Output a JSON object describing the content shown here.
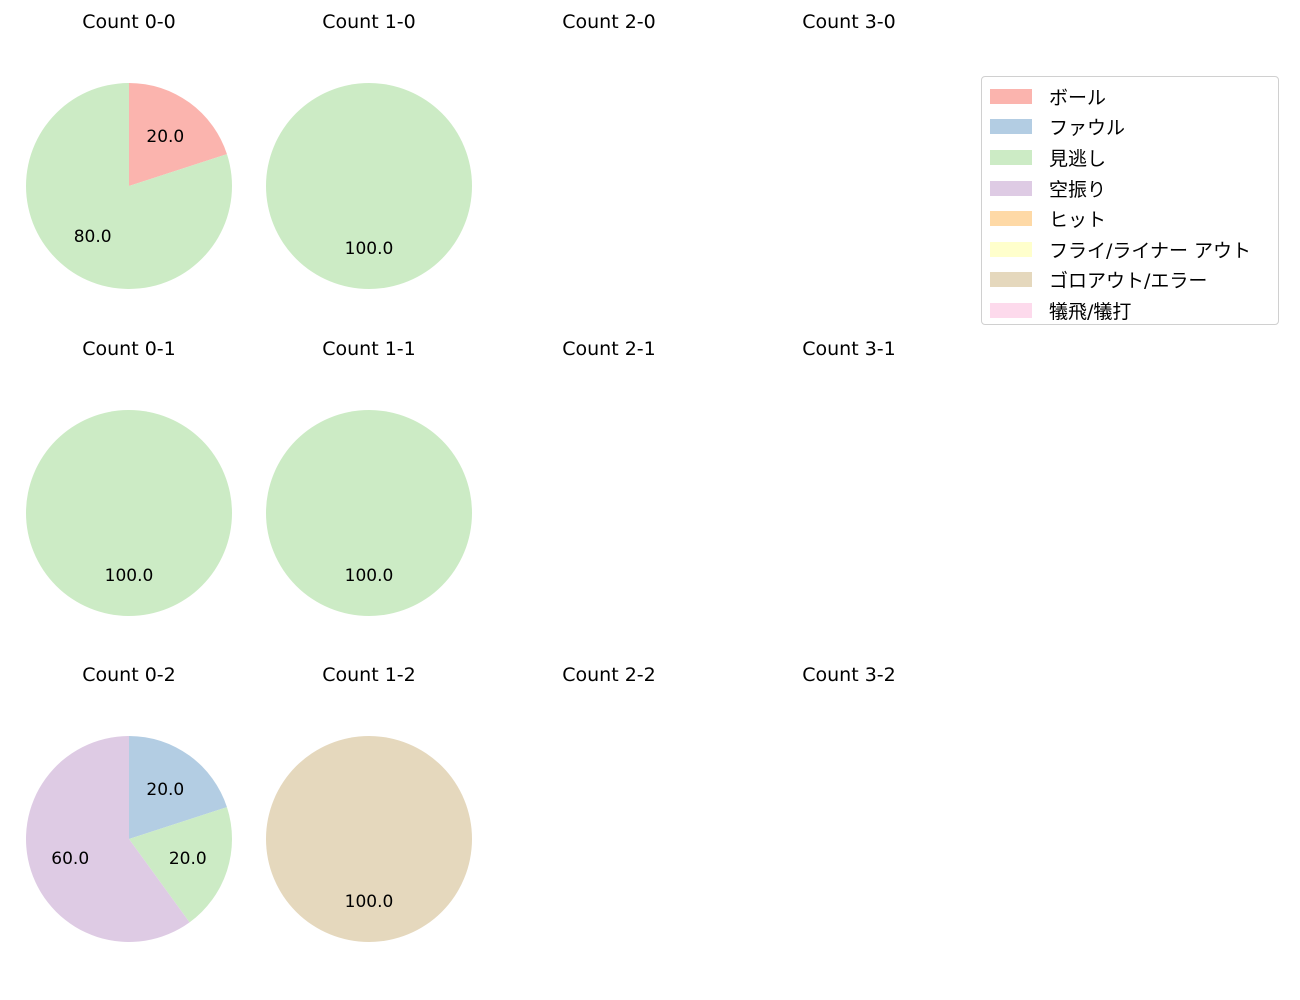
{
  "chart_data": {
    "type": "pie",
    "layout": {
      "rows": 3,
      "cols": 4,
      "start_angle": 90,
      "direction": "clockwise",
      "autopct": "%.1f"
    },
    "legend": {
      "position": "upper right",
      "entries": [
        {
          "label": "ボール",
          "color": "#fbb4ae"
        },
        {
          "label": "ファウル",
          "color": "#b3cde3"
        },
        {
          "label": "見逃し",
          "color": "#ccebc5"
        },
        {
          "label": "空振り",
          "color": "#decbe4"
        },
        {
          "label": "ヒット",
          "color": "#fed9a6"
        },
        {
          "label": "フライ/ライナー アウト",
          "color": "#ffffcc"
        },
        {
          "label": "ゴロアウト/エラー",
          "color": "#e5d8bd"
        },
        {
          "label": "犠飛/犠打",
          "color": "#fddaec"
        }
      ]
    },
    "panels": [
      {
        "title": "Count 0-0",
        "row": 0,
        "col": 0,
        "slices": [
          {
            "label": "ボール",
            "value": 20.0
          },
          {
            "label": "見逃し",
            "value": 80.0
          }
        ]
      },
      {
        "title": "Count 1-0",
        "row": 0,
        "col": 1,
        "slices": [
          {
            "label": "見逃し",
            "value": 100.0
          }
        ]
      },
      {
        "title": "Count 2-0",
        "row": 0,
        "col": 2,
        "slices": []
      },
      {
        "title": "Count 3-0",
        "row": 0,
        "col": 3,
        "slices": []
      },
      {
        "title": "Count 0-1",
        "row": 1,
        "col": 0,
        "slices": [
          {
            "label": "見逃し",
            "value": 100.0
          }
        ]
      },
      {
        "title": "Count 1-1",
        "row": 1,
        "col": 1,
        "slices": [
          {
            "label": "見逃し",
            "value": 100.0
          }
        ]
      },
      {
        "title": "Count 2-1",
        "row": 1,
        "col": 2,
        "slices": []
      },
      {
        "title": "Count 3-1",
        "row": 1,
        "col": 3,
        "slices": []
      },
      {
        "title": "Count 0-2",
        "row": 2,
        "col": 0,
        "slices": [
          {
            "label": "ファウル",
            "value": 20.0
          },
          {
            "label": "見逃し",
            "value": 20.0
          },
          {
            "label": "空振り",
            "value": 60.0
          }
        ]
      },
      {
        "title": "Count 1-2",
        "row": 2,
        "col": 1,
        "slices": [
          {
            "label": "ゴロアウト/エラー",
            "value": 100.0
          }
        ]
      },
      {
        "title": "Count 2-2",
        "row": 2,
        "col": 2,
        "slices": []
      },
      {
        "title": "Count 3-2",
        "row": 2,
        "col": 3,
        "slices": []
      }
    ]
  }
}
